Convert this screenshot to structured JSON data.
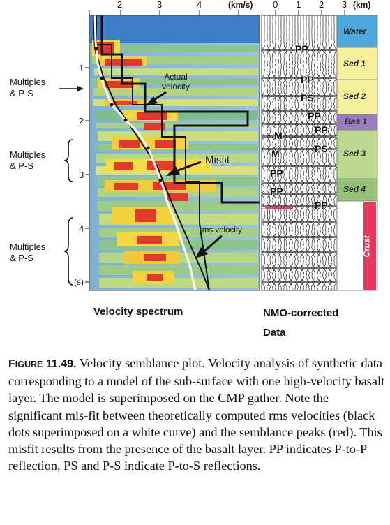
{
  "figure": {
    "top_axis": {
      "velocity_ticks": [
        "2",
        "3",
        "4"
      ],
      "velocity_unit": "(km/s)",
      "offset_ticks": [
        "0",
        "1",
        "2",
        "3"
      ],
      "offset_unit": "(km)"
    },
    "time_axis": {
      "ticks": [
        "1",
        "2",
        "3",
        "4"
      ],
      "unit": "(s)"
    },
    "side_labels": [
      {
        "line1": "Multiples",
        "line2": "& P-S"
      },
      {
        "line1": "Multiples",
        "line2": "& P-S"
      },
      {
        "line1": "Multiples",
        "line2": "& P-S"
      }
    ],
    "annotations": {
      "actual_velocity": [
        "Actual",
        "velocity"
      ],
      "misfit": "Misfit",
      "rms_velocity": "rms velocity"
    },
    "reflections": [
      "PP",
      "PP",
      "PS",
      "PP",
      "PP",
      "PS",
      "M",
      "M",
      "PP",
      "PP",
      "PP"
    ],
    "layers": [
      {
        "name": "Water",
        "color": "#4ea9dc",
        "text_color": "#111"
      },
      {
        "name": "Sed 1",
        "color": "#f6ef9c",
        "text_color": "#111"
      },
      {
        "name": "Sed 2",
        "color": "#f6ef9c",
        "text_color": "#111"
      },
      {
        "name": "Bas 1",
        "color": "#9a7cc0",
        "text_color": "#111"
      },
      {
        "name": "Sed 3",
        "color": "#bcd98f",
        "text_color": "#111"
      },
      {
        "name": "Sed 4",
        "color": "#95c178",
        "text_color": "#111"
      },
      {
        "name": "Crust",
        "color": "#e8385c",
        "text_color": "#ffffff"
      }
    ],
    "panel_titles": {
      "left": "Velocity spectrum",
      "right_line1": "NMO-corrected",
      "right_line2": "Data"
    }
  },
  "caption": {
    "figure_label_first": "F",
    "figure_label_rest": "IGURE",
    "figure_number": "11.49.",
    "text": "Velocity semblance plot. Velocity analysis of synthetic data corresponding to a model of the sub-surface with one high-velocity basalt layer. The model is superimposed on the CMP gather. Note the significant mis-fit between theoretically computed rms velocities (black dots superimposed on a white curve) and the semblance peaks (red). This misfit results from the presence of the basalt layer. PP indicates P-to-P reflection, PS and P-S indicate P-to-S reflections."
  }
}
